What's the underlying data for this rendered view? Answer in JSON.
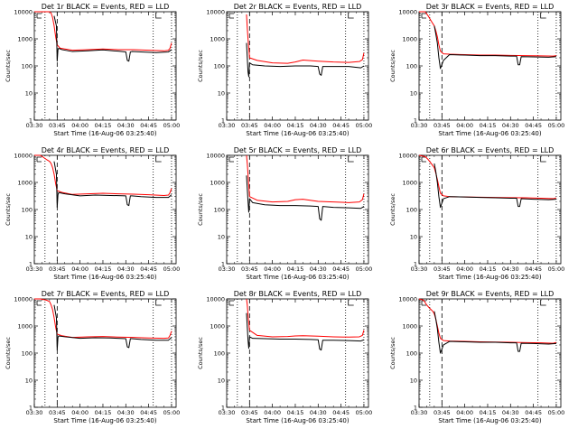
{
  "colors": {
    "events": "#000000",
    "lld": "#ff0000",
    "axis": "#000000"
  },
  "x_tick_labels": [
    "03:30",
    "03:45",
    "04:00",
    "04:15",
    "04:30",
    "04:45",
    "05:00"
  ],
  "y_tick_labels": [
    "1",
    "10",
    "100",
    "1000",
    "10000"
  ],
  "chart_data": [
    {
      "type": "line",
      "title": "Det 1r BLACK = Events, RED = LLD",
      "xlabel": "Start Time (16-Aug-06 03:25:40)",
      "ylabel": "Counts/sec",
      "x_unit": "minutes after 03:30",
      "xlim": [
        0,
        93
      ],
      "ylim": [
        1,
        10000
      ],
      "yscale": "log",
      "grid": false,
      "vertical_lines": [
        {
          "x": 7,
          "style": "dotted"
        },
        {
          "x": 15,
          "style": "dashed"
        },
        {
          "x": 78,
          "style": "dotted"
        },
        {
          "x": 90,
          "style": "dotted"
        }
      ],
      "series": [
        {
          "name": "Events",
          "color": "#000000",
          "x": [
            13,
            14.5,
            15,
            15.5,
            16,
            18,
            25,
            35,
            45,
            55,
            60,
            61,
            62,
            63,
            64,
            70,
            80,
            88,
            90
          ],
          "y": [
            7000,
            3000,
            150,
            400,
            450,
            400,
            340,
            360,
            390,
            350,
            330,
            160,
            150,
            330,
            340,
            330,
            310,
            330,
            400
          ]
        },
        {
          "name": "LLD",
          "color": "#ff0000",
          "x": [
            0,
            4,
            10,
            11,
            12,
            13,
            14,
            15,
            17,
            25,
            35,
            45,
            55,
            65,
            75,
            85,
            88,
            89,
            90
          ],
          "y": [
            10000,
            10000,
            10000,
            9000,
            6000,
            3000,
            1200,
            600,
            450,
            380,
            400,
            420,
            400,
            400,
            380,
            360,
            380,
            450,
            700
          ]
        }
      ]
    },
    {
      "type": "line",
      "title": "Det 2r BLACK = Events, RED = LLD",
      "xlabel": "Start Time (16-Aug-06 03:25:40)",
      "ylabel": "Counts/sec",
      "x_unit": "minutes after 03:30",
      "xlim": [
        0,
        93
      ],
      "ylim": [
        1,
        10000
      ],
      "yscale": "log",
      "grid": false,
      "vertical_lines": [
        {
          "x": 7,
          "style": "dotted"
        },
        {
          "x": 15,
          "style": "dashed"
        },
        {
          "x": 78,
          "style": "dotted"
        },
        {
          "x": 90,
          "style": "dotted"
        }
      ],
      "series": [
        {
          "name": "Events",
          "color": "#000000",
          "x": [
            13,
            14,
            14.5,
            15,
            17,
            25,
            35,
            45,
            55,
            60,
            61,
            62,
            63,
            70,
            80,
            88,
            90
          ],
          "y": [
            700,
            60,
            40,
            130,
            110,
            100,
            95,
            100,
            100,
            95,
            50,
            45,
            95,
            95,
            95,
            85,
            100
          ]
        },
        {
          "name": "LLD",
          "color": "#ff0000",
          "x": [
            13,
            13.5,
            14,
            15,
            20,
            30,
            40,
            45,
            50,
            60,
            70,
            80,
            87,
            89,
            90
          ],
          "y": [
            8000,
            2500,
            1000,
            200,
            160,
            130,
            125,
            140,
            165,
            150,
            140,
            135,
            145,
            170,
            300
          ]
        }
      ]
    },
    {
      "type": "line",
      "title": "Det 3r BLACK = Events, RED = LLD",
      "xlabel": "Start Time (16-Aug-06 03:25:40)",
      "ylabel": "Counts/sec",
      "x_unit": "minutes after 03:30",
      "xlim": [
        0,
        93
      ],
      "ylim": [
        1,
        10000
      ],
      "yscale": "log",
      "grid": false,
      "vertical_lines": [
        {
          "x": 7,
          "style": "dotted"
        },
        {
          "x": 15,
          "style": "dashed"
        },
        {
          "x": 78,
          "style": "dotted"
        },
        {
          "x": 90,
          "style": "dotted"
        }
      ],
      "series": [
        {
          "name": "Events",
          "color": "#000000",
          "x": [
            10,
            11,
            12,
            13,
            14,
            16,
            20,
            30,
            40,
            50,
            60,
            64,
            65,
            66,
            67,
            75,
            85,
            90
          ],
          "y": [
            3000,
            1500,
            700,
            200,
            80,
            160,
            260,
            250,
            240,
            240,
            230,
            230,
            110,
            110,
            220,
            215,
            210,
            220
          ]
        },
        {
          "name": "LLD",
          "color": "#ff0000",
          "x": [
            0,
            4,
            6,
            8,
            10,
            11,
            12,
            13,
            14,
            16,
            20,
            30,
            40,
            50,
            60,
            70,
            80,
            88,
            90
          ],
          "y": [
            10000,
            10000,
            7000,
            4500,
            3000,
            2000,
            1200,
            600,
            350,
            280,
            270,
            260,
            250,
            250,
            245,
            240,
            235,
            230,
            240
          ]
        }
      ]
    },
    {
      "type": "line",
      "title": "Det 4r BLACK = Events, RED = LLD",
      "xlabel": "Start Time (16-Aug-06 03:25:40)",
      "ylabel": "Counts/sec",
      "x_unit": "minutes after 03:30",
      "xlim": [
        0,
        93
      ],
      "ylim": [
        1,
        10000
      ],
      "yscale": "log",
      "grid": false,
      "vertical_lines": [
        {
          "x": 7,
          "style": "dotted"
        },
        {
          "x": 15,
          "style": "dashed"
        },
        {
          "x": 78,
          "style": "dotted"
        },
        {
          "x": 90,
          "style": "dotted"
        }
      ],
      "series": [
        {
          "name": "Events",
          "color": "#000000",
          "x": [
            13,
            14.5,
            15,
            15.5,
            16,
            20,
            30,
            40,
            50,
            60,
            61,
            62,
            63,
            64,
            70,
            80,
            88,
            90
          ],
          "y": [
            6000,
            2000,
            120,
            350,
            420,
            380,
            320,
            340,
            330,
            320,
            150,
            140,
            320,
            320,
            300,
            280,
            280,
            350
          ]
        },
        {
          "name": "LLD",
          "color": "#ff0000",
          "x": [
            0,
            4,
            8,
            10,
            11,
            12,
            13,
            14,
            15,
            18,
            25,
            35,
            45,
            55,
            65,
            75,
            85,
            88,
            89,
            90
          ],
          "y": [
            10000,
            10000,
            7000,
            6000,
            5000,
            3500,
            2000,
            900,
            500,
            430,
            360,
            380,
            400,
            380,
            370,
            350,
            330,
            340,
            420,
            600
          ]
        }
      ]
    },
    {
      "type": "line",
      "title": "Det 5r BLACK = Events, RED = LLD",
      "xlabel": "Start Time (16-Aug-06 03:25:40)",
      "ylabel": "Counts/sec",
      "x_unit": "minutes after 03:30",
      "xlim": [
        0,
        93
      ],
      "ylim": [
        1,
        10000
      ],
      "yscale": "log",
      "grid": false,
      "vertical_lines": [
        {
          "x": 7,
          "style": "dotted"
        },
        {
          "x": 15,
          "style": "dashed"
        },
        {
          "x": 78,
          "style": "dotted"
        },
        {
          "x": 90,
          "style": "dotted"
        }
      ],
      "series": [
        {
          "name": "Events",
          "color": "#000000",
          "x": [
            13,
            14,
            14.5,
            15,
            17,
            25,
            35,
            45,
            55,
            60,
            61,
            62,
            63,
            70,
            80,
            88,
            90
          ],
          "y": [
            1800,
            200,
            80,
            250,
            180,
            150,
            140,
            140,
            135,
            130,
            45,
            40,
            130,
            120,
            115,
            110,
            130
          ]
        },
        {
          "name": "LLD",
          "color": "#ff0000",
          "x": [
            13,
            13.5,
            14,
            15,
            20,
            30,
            40,
            45,
            50,
            60,
            70,
            80,
            87,
            89,
            90
          ],
          "y": [
            10000,
            5000,
            2000,
            300,
            220,
            190,
            200,
            230,
            240,
            200,
            190,
            180,
            190,
            230,
            380
          ]
        }
      ]
    },
    {
      "type": "line",
      "title": "Det 6r BLACK = Events, RED = LLD",
      "xlabel": "Start Time (16-Aug-06 03:25:40)",
      "ylabel": "Counts/sec",
      "x_unit": "minutes after 03:30",
      "xlim": [
        0,
        93
      ],
      "ylim": [
        1,
        10000
      ],
      "yscale": "log",
      "grid": false,
      "vertical_lines": [
        {
          "x": 7,
          "style": "dotted"
        },
        {
          "x": 15,
          "style": "dashed"
        },
        {
          "x": 78,
          "style": "dotted"
        },
        {
          "x": 90,
          "style": "dotted"
        }
      ],
      "series": [
        {
          "name": "Events",
          "color": "#000000",
          "x": [
            10,
            11,
            12,
            13,
            14,
            16,
            20,
            30,
            40,
            50,
            60,
            64,
            65,
            66,
            67,
            75,
            85,
            90
          ],
          "y": [
            5000,
            2500,
            1000,
            300,
            120,
            250,
            300,
            290,
            280,
            270,
            260,
            260,
            130,
            130,
            250,
            240,
            230,
            240
          ]
        },
        {
          "name": "LLD",
          "color": "#ff0000",
          "x": [
            0,
            4,
            6,
            8,
            10,
            11,
            12,
            13,
            14,
            16,
            20,
            30,
            40,
            50,
            60,
            70,
            80,
            88,
            90
          ],
          "y": [
            10000,
            9000,
            7000,
            5000,
            3500,
            2200,
            1300,
            700,
            400,
            320,
            300,
            290,
            285,
            280,
            275,
            270,
            260,
            250,
            270
          ]
        }
      ]
    },
    {
      "type": "line",
      "title": "Det 7r BLACK = Events, RED = LLD",
      "xlabel": "Start Time (16-Aug-06 03:25:40)",
      "ylabel": "Counts/sec",
      "x_unit": "minutes after 03:30",
      "xlim": [
        0,
        93
      ],
      "ylim": [
        1,
        10000
      ],
      "yscale": "log",
      "grid": false,
      "vertical_lines": [
        {
          "x": 7,
          "style": "dotted"
        },
        {
          "x": 15,
          "style": "dashed"
        },
        {
          "x": 78,
          "style": "dotted"
        },
        {
          "x": 90,
          "style": "dotted"
        }
      ],
      "series": [
        {
          "name": "Events",
          "color": "#000000",
          "x": [
            13,
            14.5,
            15,
            15.5,
            16,
            20,
            30,
            40,
            50,
            60,
            61,
            62,
            63,
            64,
            70,
            80,
            88,
            90
          ],
          "y": [
            6000,
            2000,
            130,
            380,
            430,
            400,
            350,
            370,
            360,
            340,
            170,
            160,
            340,
            340,
            320,
            300,
            300,
            380
          ]
        },
        {
          "name": "LLD",
          "color": "#ff0000",
          "x": [
            0,
            4,
            8,
            10,
            11,
            12,
            13,
            14,
            15,
            18,
            25,
            35,
            45,
            55,
            65,
            75,
            85,
            88,
            89,
            90
          ],
          "y": [
            10000,
            10000,
            9000,
            8000,
            6000,
            4000,
            2000,
            900,
            500,
            440,
            380,
            400,
            410,
            390,
            380,
            360,
            350,
            360,
            450,
            650
          ]
        }
      ]
    },
    {
      "type": "line",
      "title": "Det 8r BLACK = Events, RED = LLD",
      "xlabel": "Start Time (16-Aug-06 03:25:40)",
      "ylabel": "Counts/sec",
      "x_unit": "minutes after 03:30",
      "xlim": [
        0,
        93
      ],
      "ylim": [
        1,
        10000
      ],
      "yscale": "log",
      "grid": false,
      "vertical_lines": [
        {
          "x": 7,
          "style": "dotted"
        },
        {
          "x": 15,
          "style": "dashed"
        },
        {
          "x": 78,
          "style": "dotted"
        },
        {
          "x": 90,
          "style": "dotted"
        }
      ],
      "series": [
        {
          "name": "Events",
          "color": "#000000",
          "x": [
            13,
            14,
            14.5,
            15,
            17,
            25,
            35,
            45,
            55,
            60,
            61,
            62,
            63,
            70,
            80,
            88,
            90
          ],
          "y": [
            3000,
            300,
            150,
            400,
            350,
            340,
            330,
            330,
            320,
            310,
            140,
            130,
            300,
            300,
            290,
            280,
            310
          ]
        },
        {
          "name": "LLD",
          "color": "#ff0000",
          "x": [
            13,
            13.5,
            14,
            15,
            20,
            30,
            40,
            45,
            50,
            60,
            70,
            80,
            87,
            89,
            90
          ],
          "y": [
            10000,
            6000,
            2500,
            700,
            450,
            400,
            410,
            430,
            440,
            420,
            400,
            390,
            400,
            450,
            700
          ]
        }
      ]
    },
    {
      "type": "line",
      "title": "Det 9r BLACK = Events, RED = LLD",
      "xlabel": "Start Time (16-Aug-06 03:25:40)",
      "ylabel": "Counts/sec",
      "x_unit": "minutes after 03:30",
      "xlim": [
        0,
        93
      ],
      "ylim": [
        1,
        10000
      ],
      "yscale": "log",
      "grid": false,
      "vertical_lines": [
        {
          "x": 7,
          "style": "dotted"
        },
        {
          "x": 15,
          "style": "dashed"
        },
        {
          "x": 78,
          "style": "dotted"
        },
        {
          "x": 90,
          "style": "dotted"
        }
      ],
      "series": [
        {
          "name": "Events",
          "color": "#000000",
          "x": [
            10,
            11,
            12,
            13,
            14,
            16,
            20,
            30,
            40,
            50,
            60,
            64,
            65,
            66,
            67,
            75,
            85,
            90
          ],
          "y": [
            3500,
            1800,
            800,
            250,
            100,
            200,
            270,
            260,
            250,
            250,
            240,
            240,
            115,
            115,
            230,
            225,
            215,
            225
          ]
        },
        {
          "name": "LLD",
          "color": "#ff0000",
          "x": [
            0,
            3,
            5,
            7,
            9,
            10,
            11,
            12,
            13,
            14,
            16,
            20,
            30,
            40,
            50,
            60,
            70,
            80,
            88,
            90
          ],
          "y": [
            10000,
            9000,
            6000,
            4500,
            3500,
            2800,
            1800,
            1000,
            550,
            350,
            290,
            280,
            270,
            260,
            255,
            250,
            245,
            240,
            230,
            250
          ]
        }
      ]
    }
  ]
}
